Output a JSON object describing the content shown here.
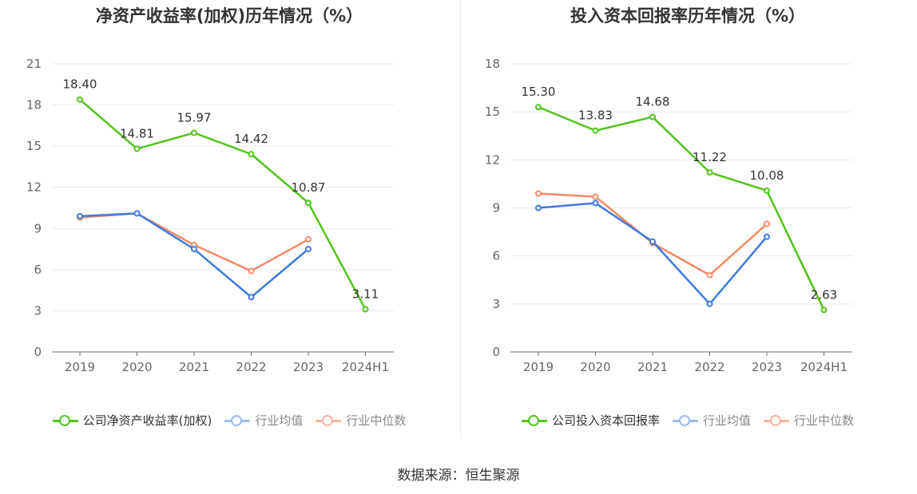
{
  "colors": {
    "company": "#52c41a",
    "avg": "#3f7be0",
    "median": "#f58a65",
    "avg_legend": "#9cb8ef",
    "median_legend": "#f6b49f"
  },
  "source": "数据来源：恒生聚源",
  "chart_data": [
    {
      "type": "line",
      "title": "净资产收益率(加权)历年情况（%）",
      "x": [
        "2019",
        "2020",
        "2021",
        "2022",
        "2023",
        "2024H1"
      ],
      "ylim": [
        0,
        21
      ],
      "yticks": [
        0,
        3,
        6,
        9,
        12,
        15,
        18,
        21
      ],
      "grid": true,
      "legend_position": "bottom",
      "series": [
        {
          "name": "公司净资产收益率(加权)",
          "values": [
            18.4,
            14.81,
            15.97,
            14.42,
            10.87,
            3.11
          ],
          "labels": [
            "18.40",
            "14.81",
            "15.97",
            "14.42",
            "10.87",
            "3.11"
          ]
        },
        {
          "name": "行业均值",
          "values": [
            9.9,
            10.1,
            7.5,
            4.0,
            7.5,
            null
          ]
        },
        {
          "name": "行业中位数",
          "values": [
            9.8,
            10.1,
            7.8,
            5.9,
            8.2,
            null
          ]
        }
      ]
    },
    {
      "type": "line",
      "title": "投入资本回报率历年情况（%）",
      "x": [
        "2019",
        "2020",
        "2021",
        "2022",
        "2023",
        "2024H1"
      ],
      "ylim": [
        0,
        18
      ],
      "yticks": [
        0,
        3,
        6,
        9,
        12,
        15,
        18
      ],
      "grid": true,
      "legend_position": "bottom",
      "series": [
        {
          "name": "公司投入资本回报率",
          "values": [
            15.3,
            13.83,
            14.68,
            11.22,
            10.08,
            2.63
          ],
          "labels": [
            "15.30",
            "13.83",
            "14.68",
            "11.22",
            "10.08",
            "2.63"
          ]
        },
        {
          "name": "行业均值",
          "values": [
            9.0,
            9.3,
            6.9,
            3.0,
            7.2,
            null
          ]
        },
        {
          "name": "行业中位数",
          "values": [
            9.9,
            9.7,
            6.8,
            4.8,
            8.0,
            null
          ]
        }
      ]
    }
  ]
}
